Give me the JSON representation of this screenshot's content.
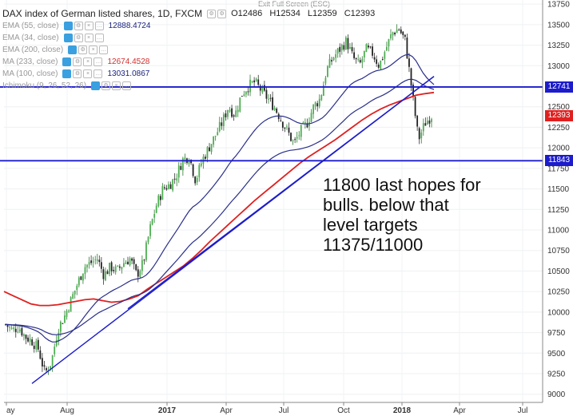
{
  "toolbar": {
    "exit_full_screen": "Exit Full Screen (ESC)"
  },
  "legend": {
    "title": "DAX index of German listed shares, 1D, FXCM",
    "ohlc": {
      "open": "O12486",
      "high": "H12534",
      "low": "L12359",
      "close": "C12393"
    },
    "indicators": [
      {
        "name": "EMA (55, close)",
        "value": "12888.4724",
        "color": "#1a237e"
      },
      {
        "name": "EMA (34, close)",
        "value": "",
        "color": "#1a237e"
      },
      {
        "name": "EMA (200, close)",
        "value": "",
        "color": "#1a237e"
      },
      {
        "name": "MA (233, close)",
        "value": "12674.4528",
        "color": "#d32f2f"
      },
      {
        "name": "MA (100, close)",
        "value": "13031.0867",
        "color": "#1a237e"
      },
      {
        "name": "Ichimoku (9, 26, 52, 26)",
        "value": "",
        "color": "#1a237e"
      }
    ]
  },
  "annotation": {
    "lines": [
      "11800 last hopes for",
      "bulls. below that",
      "level targets",
      "11375/11000"
    ]
  },
  "price_tags": [
    {
      "label": "12741",
      "value": 12741,
      "color": "#1c1ccc"
    },
    {
      "label": "12393",
      "value": 12393,
      "color": "#e02020"
    },
    {
      "label": "11843",
      "value": 11843,
      "color": "#1c1ccc"
    }
  ],
  "chart_data": {
    "type": "candlestick",
    "title": "DAX index of German listed shares, 1D, FXCM",
    "ylim": [
      8900,
      13800
    ],
    "y_ticks": [
      9000,
      9250,
      9500,
      9750,
      10000,
      10250,
      10500,
      10750,
      11000,
      11250,
      11500,
      11750,
      12000,
      12250,
      12500,
      12750,
      13000,
      13250,
      13500,
      13750
    ],
    "x_ticks": [
      "ay",
      "Aug",
      "2017",
      "Apr",
      "Jul",
      "Oct",
      "2018",
      "Apr",
      "Jul"
    ],
    "horizontal_lines": [
      12741,
      11843
    ],
    "trendlines": [
      {
        "from": [
          "Jun 2016",
          9130
        ],
        "to": [
          "Feb 2018",
          12870
        ]
      },
      {
        "from": [
          "Nov 2016",
          10040
        ],
        "to": [
          "Feb 2018",
          12870
        ]
      }
    ],
    "series": [
      {
        "name": "DAX close",
        "values": [
          9850,
          9780,
          9820,
          9700,
          9650,
          9550,
          9250,
          9400,
          9800,
          9950,
          10150,
          10350,
          10550,
          10600,
          10650,
          10450,
          10550,
          10500,
          10600,
          10650,
          10450,
          10600,
          11000,
          11300,
          11500,
          11550,
          11650,
          11850,
          11900,
          11600,
          11850,
          12000,
          12150,
          12300,
          12500,
          12400,
          12650,
          12750,
          12800,
          12700,
          12600,
          12500,
          12350,
          12200,
          12050,
          12200,
          12300,
          12500,
          12600,
          12950,
          13100,
          13200,
          13300,
          13100,
          13000,
          13200,
          13150,
          13000,
          13200,
          13400,
          13450,
          13300,
          12700,
          12100,
          12300,
          12393
        ]
      },
      {
        "name": "MA (233, close)",
        "values": [
          10250,
          10200,
          10150,
          10100,
          10080,
          10080,
          10090,
          10110,
          10130,
          10150,
          10160,
          10140,
          10120,
          10130,
          10160,
          10200,
          10280,
          10350,
          10420,
          10490,
          10560,
          10650,
          10750,
          10860,
          10960,
          11060,
          11160,
          11260,
          11360,
          11450,
          11540,
          11630,
          11720,
          11810,
          11890,
          11960,
          12030,
          12100,
          12180,
          12260,
          12340,
          12410,
          12470,
          12520,
          12560,
          12600,
          12640,
          12660,
          12674
        ]
      }
    ]
  }
}
